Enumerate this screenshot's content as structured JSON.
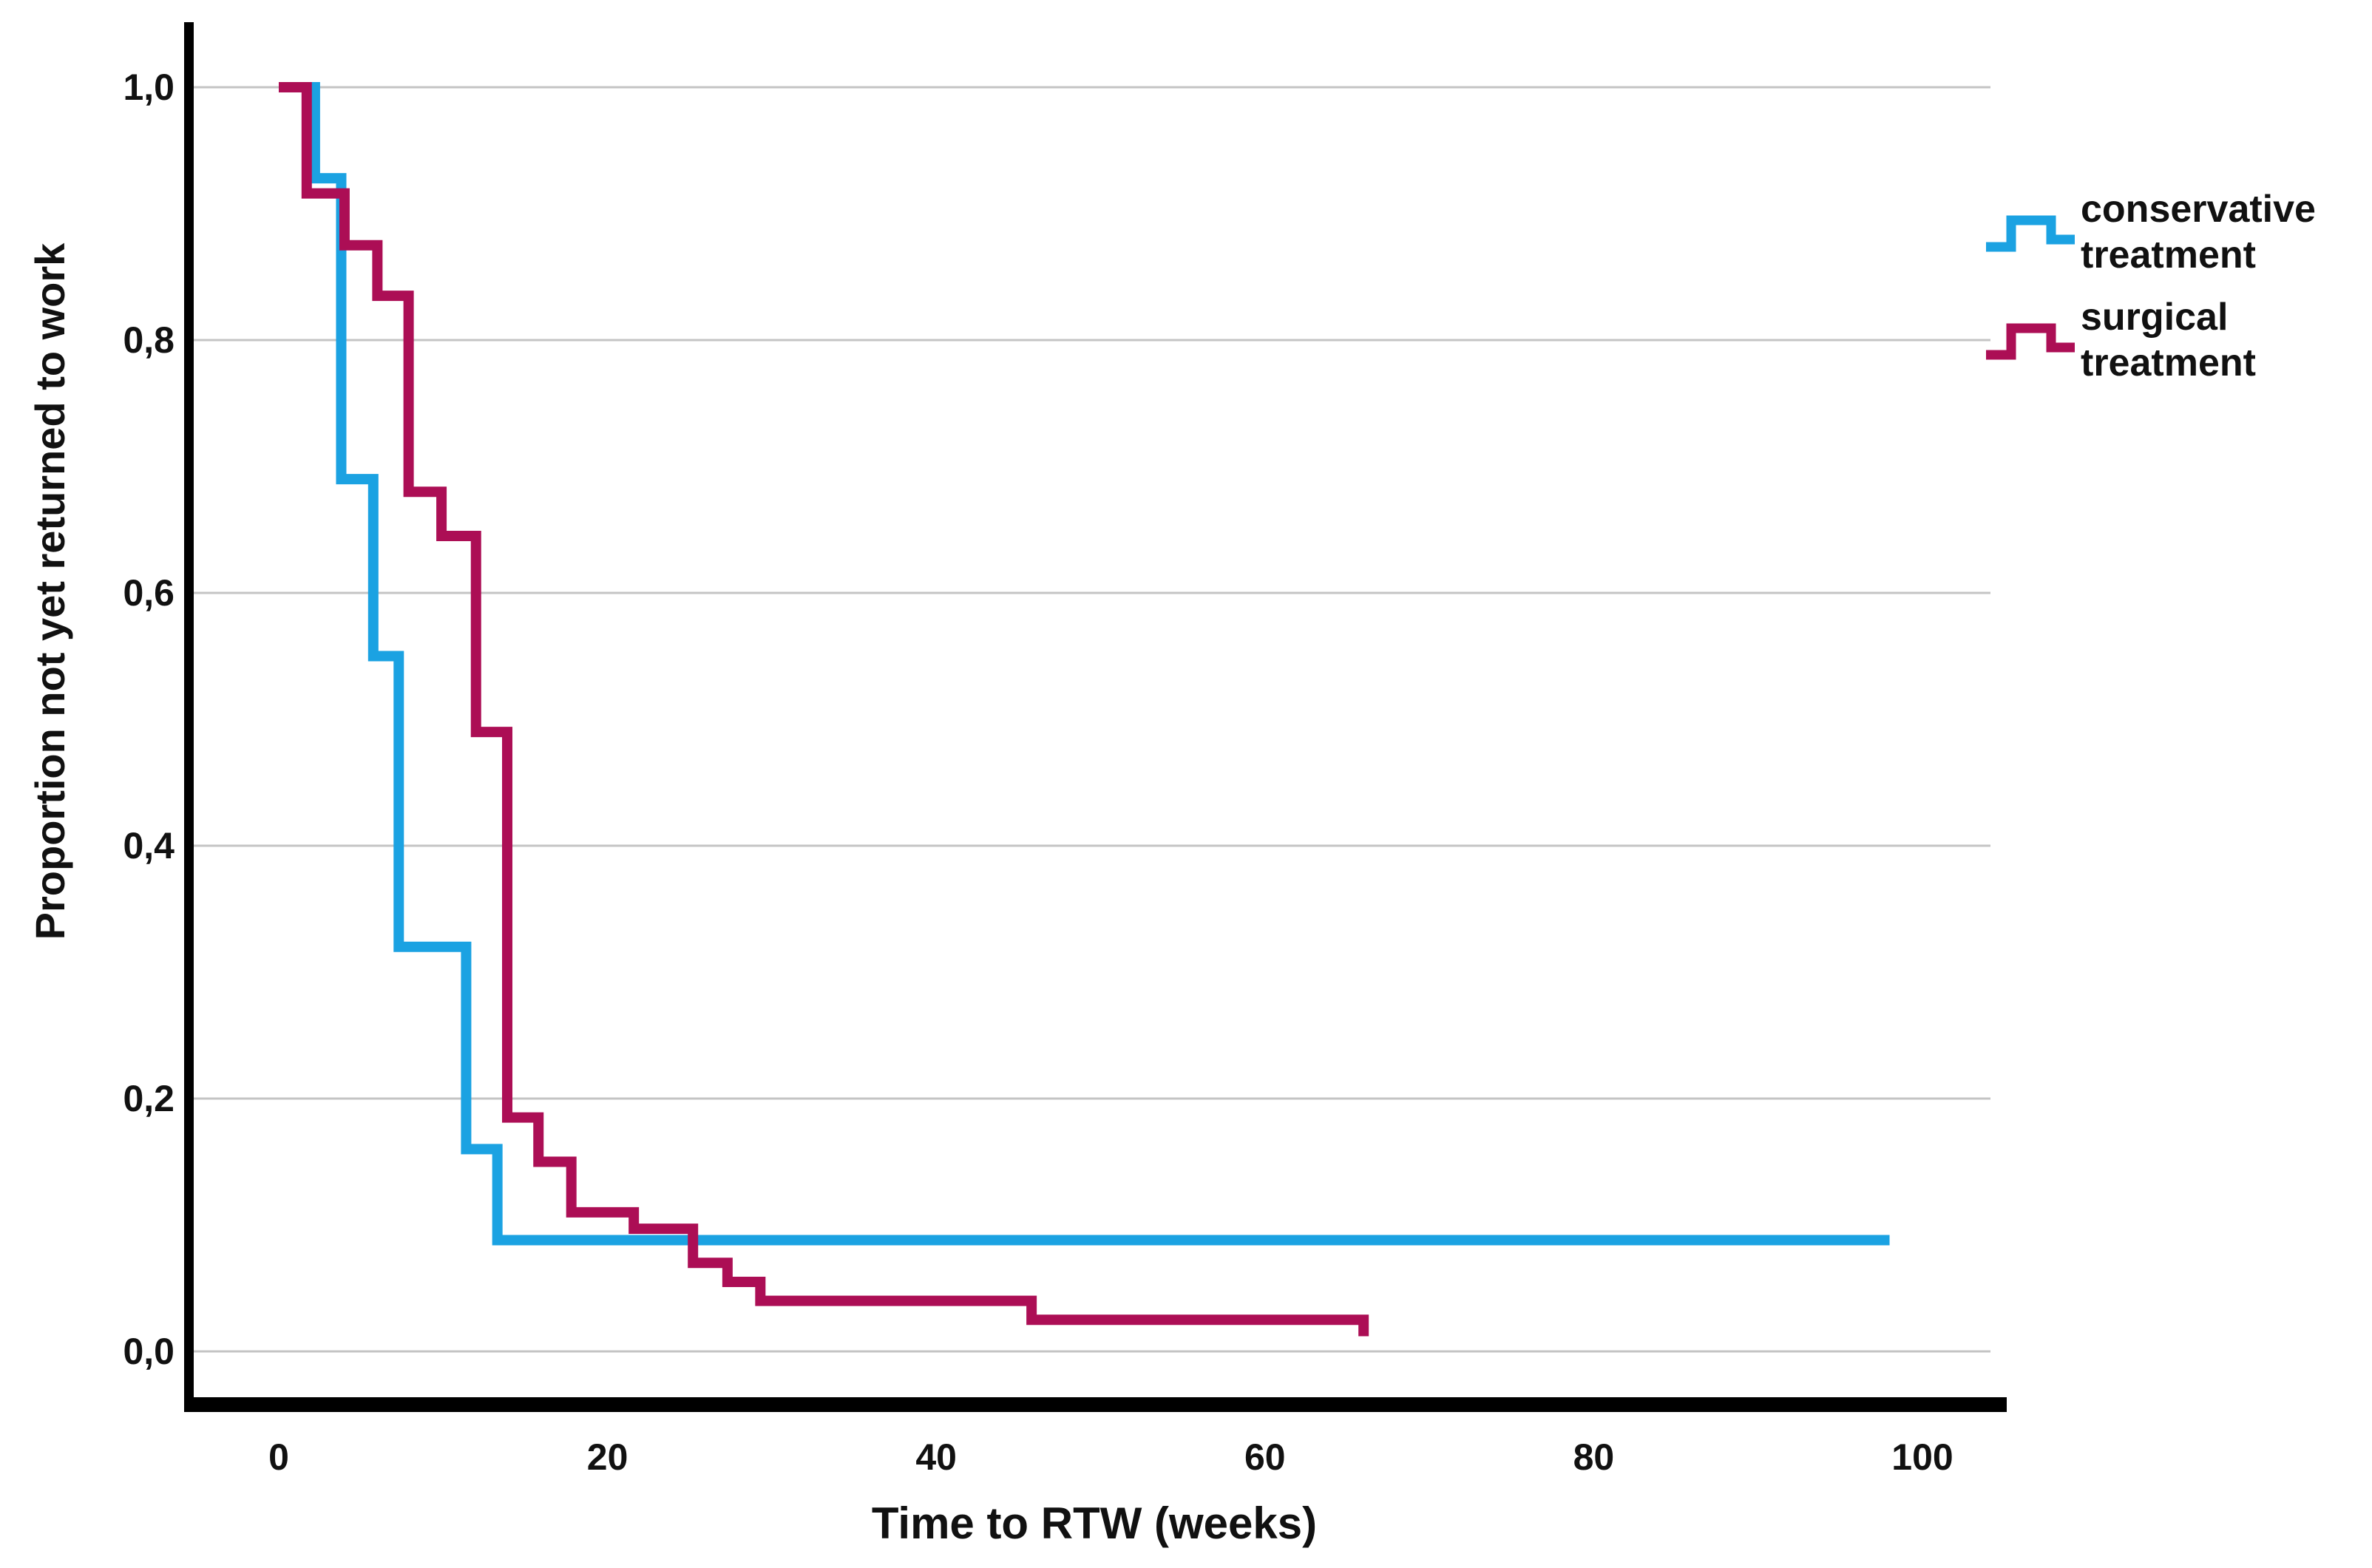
{
  "chart": {
    "y_title": "Proportion not yet returned to work",
    "x_title": "Time to RTW (weeks)"
  },
  "chart_data": {
    "type": "line",
    "subtype": "kaplan-meier-step",
    "title": "",
    "xlabel": "Time to RTW (weeks)",
    "ylabel": "Proportion not yet returned to work",
    "xlim": [
      -5.5,
      104
    ],
    "ylim": [
      0,
      1.05
    ],
    "grid": true,
    "legend_position": "right",
    "x_ticks": [
      0,
      20,
      40,
      60,
      80,
      100
    ],
    "x_tick_labels": [
      "0",
      "20",
      "40",
      "60",
      "80",
      "100"
    ],
    "y_ticks": [
      1.0,
      0.8,
      0.6,
      0.4,
      0.2,
      0.0
    ],
    "y_tick_labels": [
      "1,0",
      "0,8",
      "0,6",
      "0,4",
      "0,2",
      "0,0"
    ],
    "series": [
      {
        "name": "conservative treatment",
        "color": "#1BA2E2",
        "steps": [
          [
            0,
            1.0
          ],
          [
            2.2,
            0.928
          ],
          [
            3.8,
            0.69
          ],
          [
            5.75,
            0.55
          ],
          [
            7.3,
            0.32
          ],
          [
            11.4,
            0.16
          ],
          [
            13.3,
            0.088
          ],
          [
            98,
            0.088
          ]
        ]
      },
      {
        "name": "surgical treatment",
        "color": "#AC0E55",
        "steps": [
          [
            0,
            1.0
          ],
          [
            1.7,
            0.916
          ],
          [
            4.0,
            0.875
          ],
          [
            6.0,
            0.835
          ],
          [
            7.9,
            0.68
          ],
          [
            9.9,
            0.645
          ],
          [
            12.0,
            0.49
          ],
          [
            13.9,
            0.185
          ],
          [
            15.8,
            0.15
          ],
          [
            17.8,
            0.11
          ],
          [
            21.6,
            0.097
          ],
          [
            25.2,
            0.07
          ],
          [
            27.3,
            0.055
          ],
          [
            29.3,
            0.04
          ],
          [
            45.8,
            0.025
          ],
          [
            66,
            0.012
          ]
        ]
      }
    ],
    "legend": [
      {
        "label_lines": [
          "conservative",
          "treatment"
        ],
        "color": "#1BA2E2"
      },
      {
        "label_lines": [
          "surgical",
          "treatment"
        ],
        "color": "#AC0E55"
      }
    ]
  }
}
